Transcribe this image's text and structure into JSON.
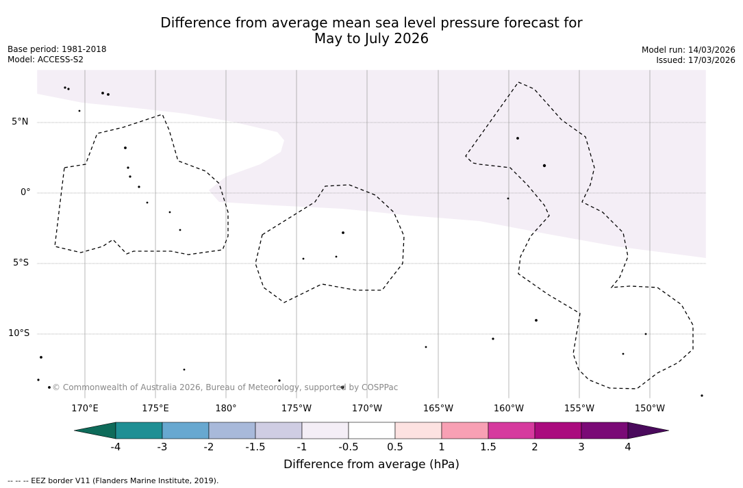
{
  "title": {
    "line1": "Difference from average mean sea level pressure forecast for",
    "line2": "May to July 2026"
  },
  "meta": {
    "base_period": "Base period: 1981-2018",
    "model": "Model: ACCESS-S2",
    "model_run": "Model run: 14/03/2026",
    "issued": "Issued: 17/03/2026"
  },
  "map": {
    "lat_labels": [
      "5°N",
      "0°",
      "5°S",
      "10°S"
    ],
    "lon_labels": [
      "170°E",
      "175°E",
      "180°",
      "175°W",
      "170°W",
      "165°W",
      "160°W",
      "155°W",
      "150°W"
    ],
    "credit": "© Commonwealth of Australia 2026, Bureau of Meteorology, supported by COSPPac",
    "anomaly_region_color": "#f4eef6"
  },
  "colorbar": {
    "label": "Difference from average (hPa)",
    "ticks": [
      "-4",
      "-3",
      "-2",
      "-1.5",
      "-1",
      "-0.5",
      "0.5",
      "1",
      "1.5",
      "2",
      "3",
      "4"
    ],
    "under_color": "#0e6b5a",
    "over_color": "#4a0a5c",
    "colors": [
      "#1f8f94",
      "#68a8d0",
      "#a8b9da",
      "#cfcde3",
      "#f4eef6",
      "#ffffff",
      "#fde2e1",
      "#f8a0b4",
      "#d63a9e",
      "#aa0b7e",
      "#7a0a76"
    ]
  },
  "footnote": "--  --  -- EEZ border V11 (Flanders Marine Institute, 2019)."
}
